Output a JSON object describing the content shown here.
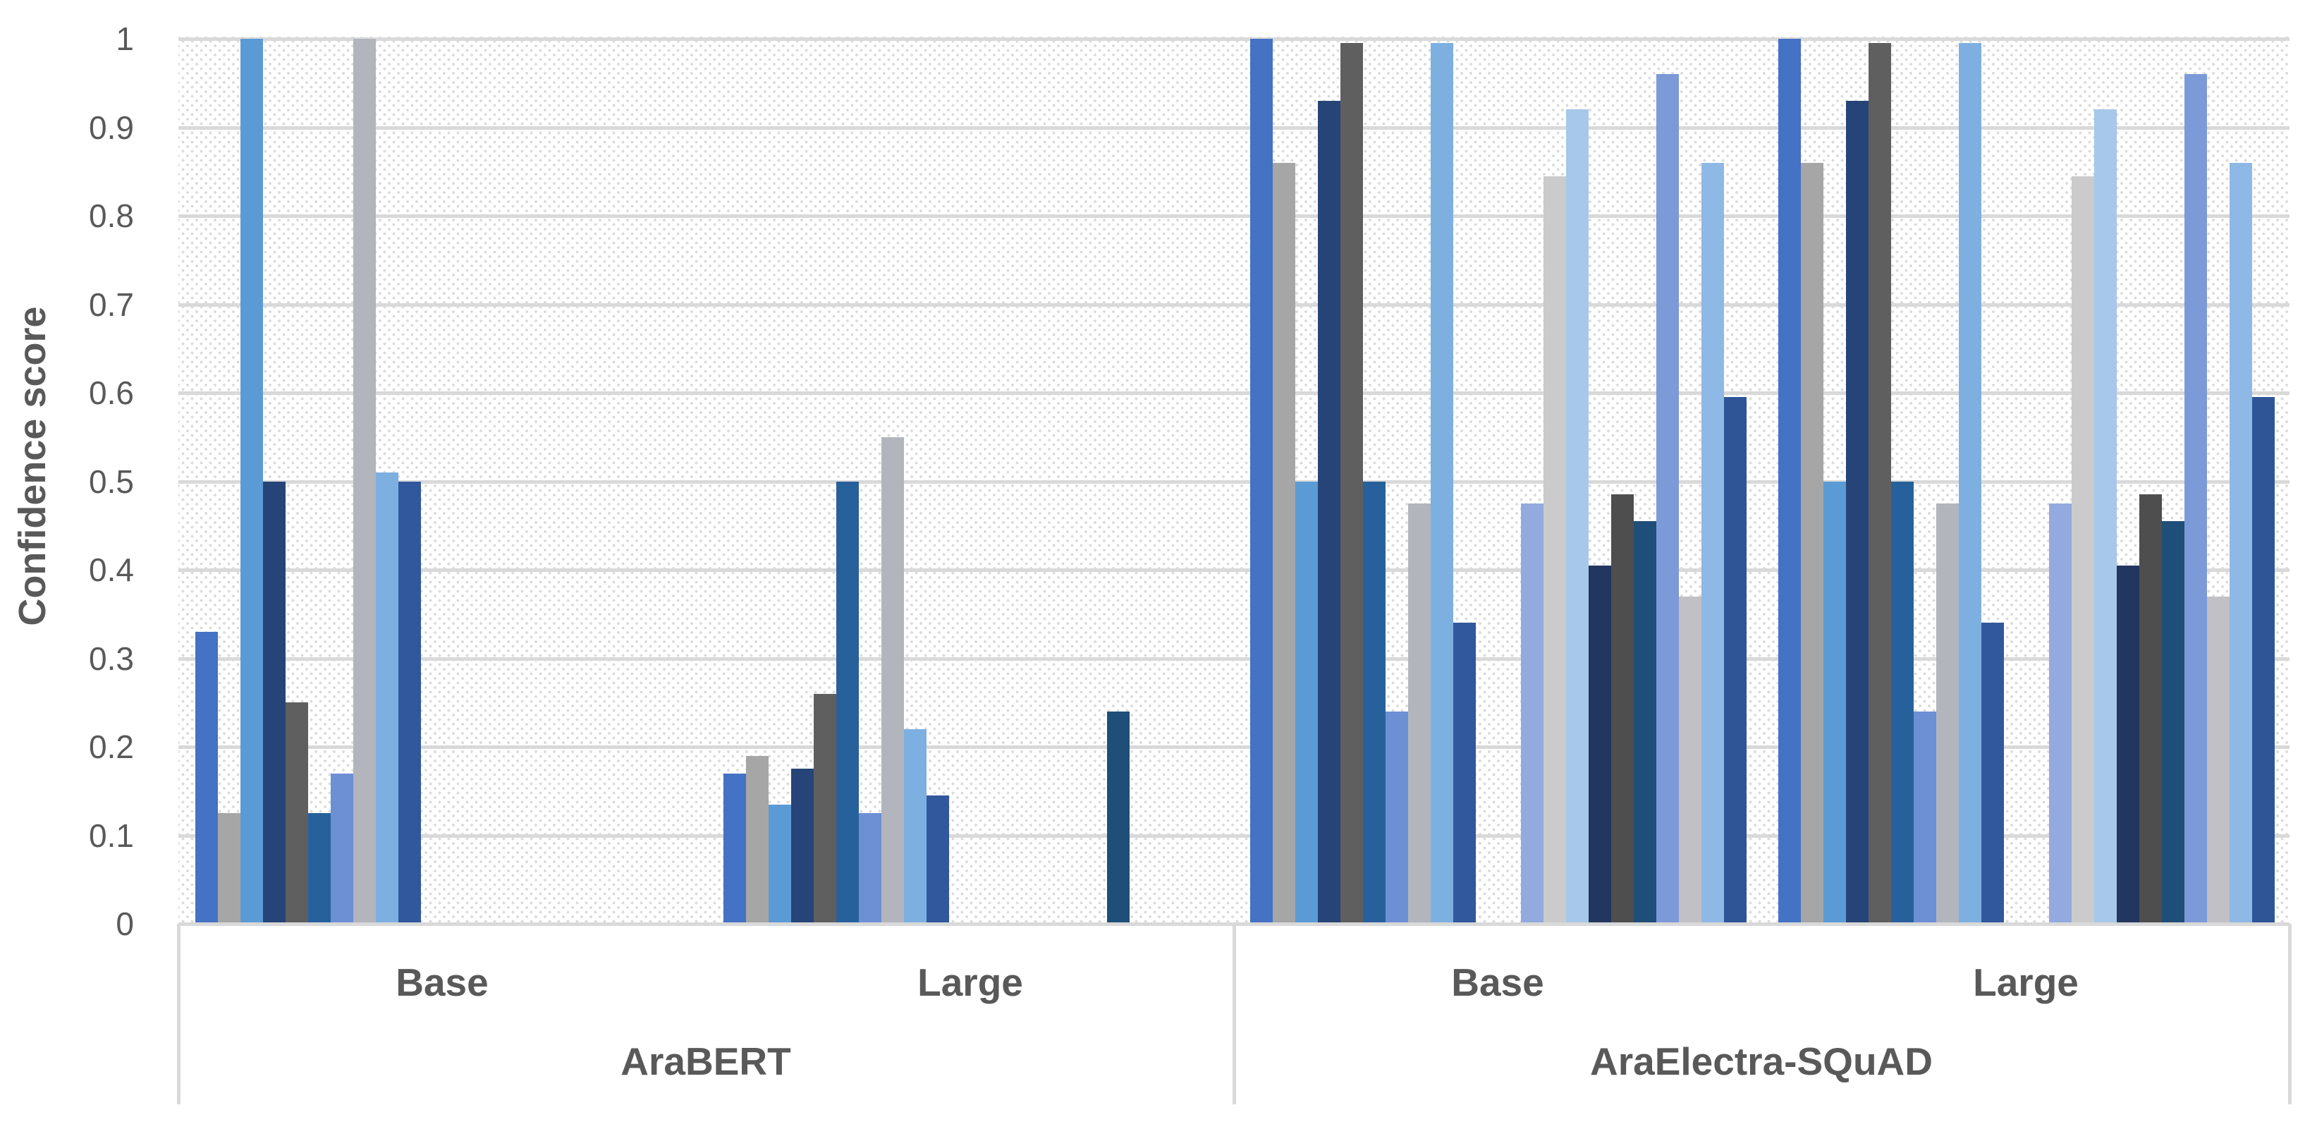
{
  "chart_data": {
    "type": "bar",
    "title": "",
    "ylabel": "Confidence score",
    "xlabel": "",
    "ylim": [
      0,
      1
    ],
    "yticks": [
      "1",
      "0.9",
      "0.8",
      "0.7",
      "0.6",
      "0.5",
      "0.4",
      "0.3",
      "0.2",
      "0.1",
      "0"
    ],
    "grid": "horizontal",
    "legend": "none",
    "plot_background": "light-downward-diagonal-dot-hatch",
    "categories": [
      "AraBERT Base",
      "AraBERT Large",
      "AraElectra-SQuAD Base",
      "AraElectra-SQuAD Large"
    ],
    "group_labels": [
      {
        "model": "AraBERT",
        "sizes": [
          "Base",
          "Large"
        ]
      },
      {
        "model": "AraElectra-SQuAD",
        "sizes": [
          "Base",
          "Large"
        ]
      }
    ],
    "series": [
      {
        "slot": 1,
        "color": "#4472C4",
        "values": [
          0.33,
          0.17,
          1.0,
          1.0
        ]
      },
      {
        "slot": 2,
        "color": "#A6A6A6",
        "values": [
          0.125,
          0.19,
          0.86,
          0.86
        ]
      },
      {
        "slot": 3,
        "color": "#5B9BD5",
        "values": [
          1.0,
          0.135,
          0.5,
          0.5
        ]
      },
      {
        "slot": 4,
        "color": "#264478",
        "values": [
          0.5,
          0.175,
          0.93,
          0.93
        ]
      },
      {
        "slot": 5,
        "color": "#5F5F5F",
        "values": [
          0.25,
          0.26,
          0.995,
          0.995
        ]
      },
      {
        "slot": 6,
        "color": "#27619B",
        "values": [
          0.125,
          0.5,
          0.5,
          0.5
        ]
      },
      {
        "slot": 7,
        "color": "#6D8FD4",
        "values": [
          0.17,
          0.125,
          0.24,
          0.24
        ]
      },
      {
        "slot": 8,
        "color": "#B2B5BC",
        "values": [
          1.0,
          0.55,
          0.475,
          0.475
        ]
      },
      {
        "slot": 9,
        "color": "#7DB0E1",
        "values": [
          0.51,
          0.22,
          0.995,
          0.995
        ]
      },
      {
        "slot": 10,
        "color": "#31589D",
        "values": [
          0.5,
          0.145,
          0.34,
          0.34
        ]
      },
      {
        "slot": 13,
        "color": "#92AADE",
        "values": [
          0,
          0,
          0.475,
          0.475
        ]
      },
      {
        "slot": 14,
        "color": "#CBCBCB",
        "values": [
          0,
          0,
          0.845,
          0.845
        ]
      },
      {
        "slot": 15,
        "color": "#A7C8EA",
        "values": [
          0,
          0,
          0.92,
          0.92
        ]
      },
      {
        "slot": 16,
        "color": "#21375F",
        "values": [
          0,
          0,
          0.405,
          0.405
        ]
      },
      {
        "slot": 17,
        "color": "#4E4E4E",
        "values": [
          0,
          0,
          0.485,
          0.485
        ]
      },
      {
        "slot": 18,
        "color": "#1F4E79",
        "values": [
          0,
          0.24,
          0.455,
          0.455
        ]
      },
      {
        "slot": 19,
        "color": "#7C9AD8",
        "values": [
          0,
          0,
          0.96,
          0.96
        ]
      },
      {
        "slot": 20,
        "color": "#C1C1C5",
        "values": [
          0,
          0,
          0.37,
          0.37
        ]
      },
      {
        "slot": 21,
        "color": "#8EB8E6",
        "values": [
          0,
          0,
          0.86,
          0.86
        ]
      },
      {
        "slot": 22,
        "color": "#2F5596",
        "values": [
          0,
          0,
          0.595,
          0.595
        ]
      }
    ]
  },
  "colors": {
    "axis_text": "#595959",
    "gridline": "#D9D9D9",
    "hatch_dot": "#DCDCDC",
    "background": "#FFFFFF"
  }
}
